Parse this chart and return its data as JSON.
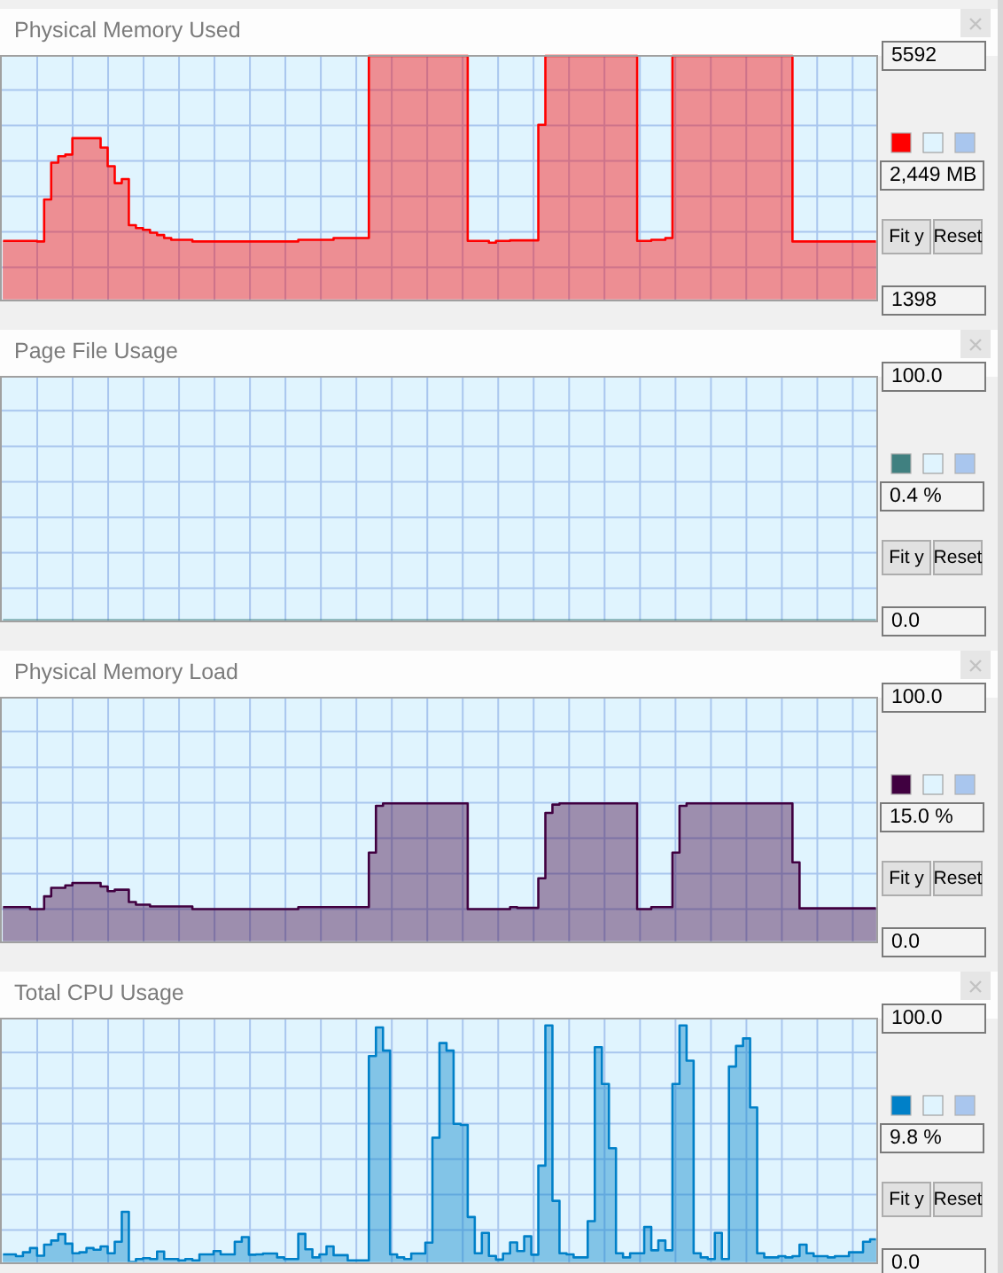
{
  "chart_data": [
    {
      "type": "area",
      "title": "Physical Memory Used",
      "tick_labels": "y",
      "grid": true,
      "color": "#ff0000",
      "categories": [
        null,
        null,
        null,
        null,
        null,
        null,
        null,
        null,
        null,
        null,
        null,
        null,
        null,
        null,
        null,
        null,
        null,
        null,
        null,
        null,
        null,
        null,
        null,
        null,
        null,
        null,
        null,
        null,
        null,
        null,
        null,
        null,
        null,
        null,
        null,
        null,
        null,
        null,
        null,
        null,
        null,
        null,
        null,
        null,
        null,
        null,
        null,
        null,
        null,
        null,
        null,
        null,
        null,
        null,
        null,
        null,
        null,
        null,
        null,
        null,
        null,
        null,
        null,
        null,
        null,
        null,
        null,
        null,
        null,
        null,
        null,
        null,
        null,
        null,
        null,
        null,
        null,
        null,
        null,
        null,
        null,
        null,
        null,
        null,
        null,
        null,
        null,
        null,
        null,
        null,
        null,
        null,
        null,
        null,
        null,
        null,
        null,
        null,
        null,
        null,
        null,
        null,
        null,
        null,
        null,
        null,
        null,
        null,
        null,
        null,
        null,
        null,
        null,
        null,
        null,
        null,
        null,
        null,
        null,
        null,
        null,
        null,
        null,
        null
      ],
      "values": [
        2420,
        2420,
        2420,
        2420,
        2420,
        2410,
        3130,
        3760,
        3870,
        3900,
        4180,
        4180,
        4180,
        4180,
        4020,
        3700,
        3410,
        3480,
        2690,
        2640,
        2610,
        2560,
        2520,
        2470,
        2440,
        2440,
        2440,
        2410,
        2410,
        2410,
        2410,
        2410,
        2410,
        2410,
        2410,
        2410,
        2410,
        2410,
        2410,
        2410,
        2410,
        2410,
        2440,
        2440,
        2440,
        2440,
        2440,
        2470,
        2470,
        2470,
        2470,
        2470,
        5592,
        5592,
        5592,
        5592,
        5592,
        5592,
        5592,
        5592,
        5592,
        5592,
        5592,
        5592,
        5592,
        5592,
        2420,
        2420,
        2420,
        2390,
        2420,
        2420,
        2430,
        2430,
        2430,
        2430,
        4410,
        5592,
        5592,
        5592,
        5592,
        5592,
        5592,
        5592,
        5592,
        5592,
        5592,
        5592,
        5592,
        5592,
        2420,
        2420,
        2440,
        2440,
        2470,
        5592,
        5592,
        5592,
        5592,
        5592,
        5592,
        5592,
        5592,
        5592,
        5592,
        5592,
        5592,
        5592,
        5592,
        5592,
        5592,
        5592,
        2410,
        2410,
        2410,
        2410,
        2410,
        2410,
        2410,
        2410,
        2410,
        2410,
        2410,
        2410
      ],
      "ylim": [
        1398,
        5592
      ],
      "yticks": [
        1398,
        {
          "value": 1968,
          "label": null
        },
        {
          "value": 2576,
          "label": null
        },
        {
          "value": 3184,
          "label": null
        },
        {
          "value": 3792,
          "label": null
        },
        {
          "value": 4400,
          "label": null
        },
        {
          "value": 5008,
          "label": null
        },
        5592
      ],
      "annotations": [
        "2,449 MB",
        "Fit y",
        "Reset"
      ]
    },
    {
      "type": "area",
      "title": "Page File Usage",
      "tick_labels": "y",
      "grid": true,
      "color": "#408080",
      "categories": [
        null,
        null,
        null,
        null,
        null,
        null,
        null,
        null,
        null,
        null,
        null,
        null,
        null,
        null,
        null,
        null,
        null,
        null,
        null,
        null,
        null,
        null,
        null,
        null,
        null,
        null,
        null,
        null,
        null,
        null,
        null,
        null,
        null,
        null,
        null,
        null,
        null,
        null,
        null,
        null,
        null,
        null,
        null,
        null,
        null,
        null,
        null,
        null,
        null,
        null,
        null,
        null,
        null,
        null,
        null,
        null,
        null,
        null,
        null,
        null,
        null,
        null,
        null,
        null,
        null,
        null,
        null,
        null,
        null,
        null,
        null,
        null,
        null,
        null,
        null,
        null,
        null,
        null,
        null,
        null,
        null,
        null,
        null,
        null,
        null,
        null,
        null,
        null,
        null,
        null,
        null,
        null,
        null,
        null,
        null,
        null,
        null,
        null,
        null,
        null,
        null,
        null,
        null,
        null,
        null,
        null,
        null,
        null,
        null,
        null,
        null,
        null,
        null,
        null,
        null,
        null,
        null,
        null,
        null,
        null,
        null,
        null,
        null,
        null
      ],
      "values": [
        0.4,
        0.4,
        0.4,
        0.4,
        0.4,
        0.4,
        0.4,
        0.4,
        0.4,
        0.4,
        0.4,
        0.4,
        0.4,
        0.4,
        0.4,
        0.4,
        0.4,
        0.4,
        0.4,
        0.4,
        0.4,
        0.4,
        0.4,
        0.4,
        0.4,
        0.4,
        0.4,
        0.4,
        0.4,
        0.4,
        0.4,
        0.4,
        0.4,
        0.4,
        0.4,
        0.4,
        0.4,
        0.4,
        0.4,
        0.4,
        0.4,
        0.4,
        0.4,
        0.4,
        0.4,
        0.4,
        0.4,
        0.4,
        0.4,
        0.4,
        0.4,
        0.4,
        0.4,
        0.4,
        0.4,
        0.4,
        0.4,
        0.4,
        0.4,
        0.4,
        0.4,
        0.4,
        0.4,
        0.4,
        0.4,
        0.4,
        0.4,
        0.4,
        0.4,
        0.4,
        0.4,
        0.4,
        0.4,
        0.4,
        0.4,
        0.4,
        0.4,
        0.4,
        0.4,
        0.4,
        0.4,
        0.4,
        0.4,
        0.4,
        0.4,
        0.4,
        0.4,
        0.4,
        0.4,
        0.4,
        0.4,
        0.4,
        0.4,
        0.4,
        0.4,
        0.4,
        0.4,
        0.4,
        0.4,
        0.4,
        0.4,
        0.4,
        0.4,
        0.4,
        0.4,
        0.4,
        0.4,
        0.4,
        0.4,
        0.4,
        0.4,
        0.4,
        0.4,
        0.4,
        0.4,
        0.4,
        0.4,
        0.4,
        0.4,
        0.4,
        0.4,
        0.4,
        0.4,
        0.4
      ],
      "ylim": [
        0,
        100
      ],
      "yticks": [
        {
          "value": 0,
          "label": "0.0"
        },
        {
          "value": 13.6,
          "label": null
        },
        {
          "value": 28.1,
          "label": null
        },
        {
          "value": 42.6,
          "label": null
        },
        {
          "value": 57.1,
          "label": null
        },
        {
          "value": 71.6,
          "label": null
        },
        {
          "value": 86.1,
          "label": null
        },
        {
          "value": 100,
          "label": "100.0"
        }
      ],
      "annotations": [
        "0.4 %",
        "Fit y",
        "Reset"
      ]
    },
    {
      "type": "area",
      "title": "Physical Memory Load",
      "tick_labels": "y",
      "grid": true,
      "color": "#400040",
      "categories": [
        null,
        null,
        null,
        null,
        null,
        null,
        null,
        null,
        null,
        null,
        null,
        null,
        null,
        null,
        null,
        null,
        null,
        null,
        null,
        null,
        null,
        null,
        null,
        null,
        null,
        null,
        null,
        null,
        null,
        null,
        null,
        null,
        null,
        null,
        null,
        null,
        null,
        null,
        null,
        null,
        null,
        null,
        null,
        null,
        null,
        null,
        null,
        null,
        null,
        null,
        null,
        null,
        null,
        null,
        null,
        null,
        null,
        null,
        null,
        null,
        null,
        null,
        null,
        null,
        null,
        null,
        null,
        null,
        null,
        null,
        null,
        null,
        null,
        null,
        null,
        null,
        null,
        null,
        null,
        null,
        null,
        null,
        null,
        null,
        null,
        null,
        null,
        null,
        null,
        null,
        null,
        null,
        null,
        null,
        null,
        null,
        null,
        null,
        null,
        null,
        null,
        null,
        null,
        null,
        null,
        null,
        null,
        null,
        null,
        null,
        null,
        null,
        null,
        null,
        null,
        null,
        null,
        null,
        null,
        null,
        null,
        null,
        null,
        null
      ],
      "values": [
        14.4,
        14.4,
        14.4,
        14.4,
        13.6,
        13.6,
        18.8,
        22.3,
        22.3,
        23.3,
        24.3,
        24.3,
        24.3,
        24.3,
        22.8,
        20.9,
        21.5,
        21.5,
        16.5,
        15.4,
        15.4,
        14.7,
        14.7,
        14.7,
        14.7,
        14.7,
        14.7,
        13.6,
        13.6,
        13.6,
        13.6,
        13.6,
        13.6,
        13.6,
        13.6,
        13.6,
        13.6,
        13.6,
        13.6,
        13.6,
        13.6,
        13.6,
        14.4,
        14.4,
        14.4,
        14.4,
        14.4,
        14.4,
        14.4,
        14.4,
        14.4,
        14.4,
        36.7,
        55.8,
        56.8,
        56.8,
        56.8,
        56.8,
        56.8,
        56.8,
        56.8,
        56.8,
        56.8,
        56.8,
        56.8,
        56.8,
        13.6,
        13.6,
        13.6,
        13.6,
        13.6,
        13.6,
        14.4,
        14.1,
        14.1,
        14.1,
        26.2,
        52.9,
        56.3,
        56.8,
        56.8,
        56.8,
        56.8,
        56.8,
        56.8,
        56.8,
        56.8,
        56.8,
        56.8,
        56.8,
        13.6,
        13.6,
        14.4,
        14.4,
        14.4,
        36.7,
        55.8,
        56.8,
        56.8,
        56.8,
        56.8,
        56.8,
        56.8,
        56.8,
        56.8,
        56.8,
        56.8,
        56.8,
        56.8,
        56.8,
        56.8,
        56.8,
        32.7,
        13.9,
        13.9,
        13.9,
        13.9,
        13.9,
        13.9,
        13.9,
        13.9,
        13.9,
        13.9,
        13.9
      ],
      "ylim": [
        0,
        100
      ],
      "yticks": [
        {
          "value": 0,
          "label": "0.0"
        },
        {
          "value": 13.6,
          "label": null
        },
        {
          "value": 28.1,
          "label": null
        },
        {
          "value": 42.6,
          "label": null
        },
        {
          "value": 57.1,
          "label": null
        },
        {
          "value": 71.6,
          "label": null
        },
        {
          "value": 86.1,
          "label": null
        },
        {
          "value": 100,
          "label": "100.0"
        }
      ],
      "annotations": [
        "15.0 %",
        "Fit y",
        "Reset"
      ]
    },
    {
      "type": "area",
      "title": "Total CPU Usage",
      "tick_labels": "y",
      "grid": true,
      "color": "#0080c8",
      "categories": [
        null,
        null,
        null,
        null,
        null,
        null,
        null,
        null,
        null,
        null,
        null,
        null,
        null,
        null,
        null,
        null,
        null,
        null,
        null,
        null,
        null,
        null,
        null,
        null,
        null,
        null,
        null,
        null,
        null,
        null,
        null,
        null,
        null,
        null,
        null,
        null,
        null,
        null,
        null,
        null,
        null,
        null,
        null,
        null,
        null,
        null,
        null,
        null,
        null,
        null,
        null,
        null,
        null,
        null,
        null,
        null,
        null,
        null,
        null,
        null,
        null,
        null,
        null,
        null,
        null,
        null,
        null,
        null,
        null,
        null,
        null,
        null,
        null,
        null,
        null,
        null,
        null,
        null,
        null,
        null,
        null,
        null,
        null,
        null,
        null,
        null,
        null,
        null,
        null,
        null,
        null,
        null,
        null,
        null,
        null,
        null,
        null,
        null,
        null,
        null,
        null,
        null,
        null,
        null,
        null,
        null,
        null,
        null,
        null,
        null,
        null,
        null,
        null,
        null,
        null,
        null,
        null,
        null,
        null,
        null,
        null,
        null,
        null,
        null
      ],
      "values": [
        3.6,
        3.6,
        2.9,
        4.5,
        6.2,
        3.1,
        7.6,
        9.3,
        11.9,
        8.0,
        4.1,
        4.5,
        6.2,
        5.5,
        6.9,
        4.1,
        8.8,
        21.0,
        0.5,
        1.7,
        2.1,
        1.7,
        4.8,
        1.7,
        1.7,
        1.2,
        1.7,
        1.2,
        3.6,
        3.6,
        5.0,
        3.6,
        3.6,
        8.8,
        10.7,
        3.5,
        3.6,
        4.0,
        4.0,
        2.4,
        1.7,
        1.7,
        12.0,
        5.7,
        2.4,
        3.6,
        6.9,
        3.3,
        3.3,
        1.2,
        1.2,
        1.2,
        84.7,
        96.4,
        86.9,
        3.6,
        2.4,
        1.7,
        4.0,
        4.0,
        8.4,
        51.3,
        90.0,
        86.9,
        57.0,
        56.5,
        18.9,
        4.1,
        12.4,
        3.0,
        1.5,
        4.0,
        8.5,
        5.0,
        11.0,
        3.5,
        39.9,
        97.2,
        25.5,
        4.1,
        3.6,
        2.4,
        2.4,
        17.2,
        88.3,
        73.3,
        47.0,
        4.1,
        2.4,
        4.1,
        4.1,
        14.8,
        5.3,
        9.3,
        5.3,
        73.3,
        97.2,
        82.8,
        4.1,
        2.4,
        1.7,
        12.4,
        1.7,
        80.4,
        88.8,
        91.9,
        63.7,
        4.1,
        2.4,
        2.4,
        2.9,
        2.4,
        2.9,
        7.6,
        4.1,
        2.9,
        2.9,
        2.4,
        2.9,
        2.9,
        4.5,
        4.5,
        8.8,
        9.8
      ],
      "ylim": [
        0,
        100
      ],
      "yticks": [
        {
          "value": 0,
          "label": "0.0"
        },
        {
          "value": 13.6,
          "label": null
        },
        {
          "value": 28.1,
          "label": null
        },
        {
          "value": 42.6,
          "label": null
        },
        {
          "value": 57.1,
          "label": null
        },
        {
          "value": 71.6,
          "label": null
        },
        {
          "value": 86.1,
          "label": null
        },
        {
          "value": 100,
          "label": "100.0"
        }
      ],
      "annotations": [
        "9.8 %",
        "Fit y",
        "Reset"
      ]
    }
  ]
}
